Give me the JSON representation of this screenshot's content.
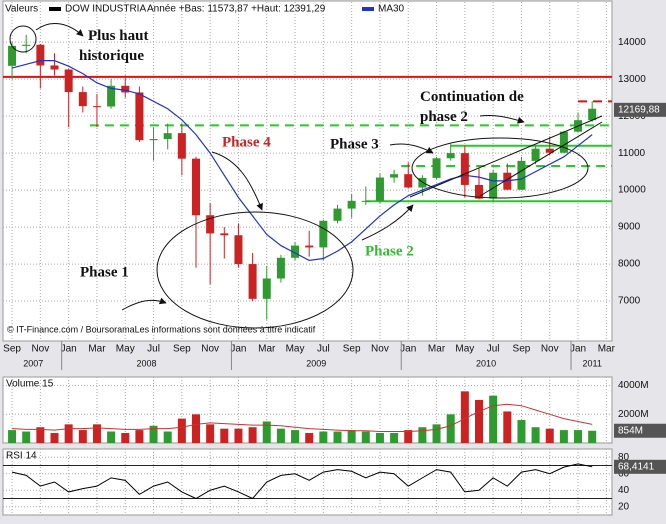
{
  "chart_data": [
    {
      "type": "candlestick",
      "header": "Valeurs",
      "title": "DOW INDUSTRIA",
      "subtitle": "Année +Bas: 11573,87 +Haut: 12391,29",
      "legend_color": "#000000",
      "copyright": "© IT-Finance.com / BoursoramaLes informations sont données à titre indicatif",
      "categories": [
        "Sep",
        null,
        "Nov",
        null,
        "Jan",
        null,
        "Mar",
        null,
        "May",
        null,
        "Jul",
        null,
        "Sep",
        null,
        "Nov",
        null,
        "Jan",
        null,
        "Mar",
        null,
        "May",
        null,
        "Jul",
        null,
        "Sep",
        null,
        "Nov",
        null,
        "Jan",
        null,
        "Mar",
        null,
        "May",
        null,
        "Jul",
        null,
        "Sep",
        null,
        "Nov",
        null,
        "Jan",
        null,
        "Mar"
      ],
      "years": [
        "2007",
        "2008",
        "2009",
        "2010",
        "2011"
      ],
      "open": [
        13360,
        13900,
        13930,
        13370,
        13260,
        12650,
        12270,
        12260,
        12820,
        12640,
        11350,
        11380,
        11540,
        10850,
        9320,
        8830,
        8780,
        8000,
        7060,
        7610,
        8170,
        8500,
        8450,
        9170,
        9500,
        9710,
        9710,
        10340,
        10430,
        10070,
        10330,
        10860,
        11000,
        10140,
        9770,
        10470,
        10010,
        10790,
        11120,
        11010,
        11580,
        11890,
        null
      ],
      "high": [
        14000,
        14200,
        13950,
        13700,
        13280,
        12800,
        12600,
        13000,
        13100,
        12800,
        11700,
        11800,
        11800,
        10900,
        9650,
        9000,
        9100,
        8300,
        7950,
        8250,
        8600,
        8900,
        9200,
        9600,
        9900,
        10100,
        10450,
        10550,
        10750,
        10400,
        10900,
        11250,
        11200,
        10600,
        10550,
        10720,
        10900,
        11200,
        11450,
        11600,
        12100,
        12400,
        null
      ],
      "low": [
        13000,
        13700,
        12750,
        13100,
        11700,
        12100,
        11700,
        12200,
        12500,
        11300,
        10800,
        11100,
        10400,
        7900,
        7450,
        8150,
        7900,
        7000,
        6500,
        7500,
        8100,
        8200,
        8100,
        9100,
        9250,
        9600,
        9650,
        10200,
        10050,
        9850,
        10300,
        10800,
        9800,
        9750,
        9680,
        10000,
        10000,
        10700,
        10950,
        11000,
        11550,
        11850,
        null
      ],
      "close": [
        13900,
        13930,
        13370,
        13260,
        12650,
        12270,
        12260,
        12820,
        12640,
        11350,
        11380,
        11540,
        10850,
        9320,
        8830,
        8780,
        8000,
        7060,
        7610,
        8170,
        8500,
        8450,
        9170,
        9500,
        9710,
        9710,
        10340,
        10430,
        10070,
        10330,
        10860,
        11000,
        10140,
        9770,
        10470,
        10010,
        10790,
        11120,
        11010,
        11580,
        11890,
        12200,
        null
      ],
      "up_color": "#2f9a2f",
      "down_color": "#cc2222",
      "series": [
        {
          "name": "MA30",
          "color": "#2233cc",
          "values": [
            13300,
            13400,
            13500,
            13500,
            13350,
            13150,
            12900,
            12750,
            12700,
            12600,
            12400,
            12200,
            11900,
            11500,
            11000,
            10400,
            9800,
            9300,
            8800,
            8500,
            8300,
            8100,
            8150,
            8350,
            8600,
            8950,
            9300,
            9600,
            9850,
            10000,
            10150,
            10300,
            10400,
            10350,
            10250,
            10250,
            10300,
            10500,
            10700,
            10900,
            11200,
            11500,
            null
          ]
        }
      ],
      "xlim": [
        -0.64,
        42.4
      ],
      "ylim": [
        5920,
        14680
      ],
      "yticks": [
        7000,
        8000,
        9000,
        10000,
        11000,
        12000,
        13000,
        14000
      ],
      "grid": true,
      "last_value": {
        "value": 12169.88,
        "label": "12169,88"
      },
      "levels": [
        {
          "value": 13060,
          "color": "#dd1111",
          "style": "solid",
          "from": -0.64,
          "to": 42.4
        },
        {
          "value": 12400,
          "color": "#dd1111",
          "style": "dashed",
          "from": 40,
          "to": 42.4
        },
        {
          "value": 11750,
          "color": "#22cc22",
          "style": "dashed",
          "from": 5.5,
          "to": 42.4
        },
        {
          "value": 11200,
          "color": "#22cc22",
          "style": "solid",
          "from": 31,
          "to": 42.4
        },
        {
          "value": 10650,
          "color": "#22cc22",
          "style": "dashed",
          "from": 27.5,
          "to": 42.4
        },
        {
          "value": 9700,
          "color": "#22cc22",
          "style": "solid",
          "from": 25,
          "to": 42.4
        }
      ],
      "annotations": {
        "record_high": [
          "Plus haut",
          "historique"
        ],
        "phase1": "Phase 1",
        "phase4": "Phase 4",
        "phase3": "Phase 3",
        "phase2": "Phase 2",
        "continuation": [
          "Continuation de",
          "phase 2"
        ]
      }
    },
    {
      "type": "bar",
      "title": "Volume 15",
      "values": [
        900,
        800,
        1100,
        700,
        1300,
        900,
        1300,
        800,
        700,
        900,
        1200,
        800,
        1700,
        2000,
        1300,
        1000,
        1000,
        1100,
        1500,
        1000,
        900,
        700,
        800,
        800,
        900,
        800,
        700,
        700,
        900,
        1100,
        1300,
        2000,
        3600,
        3000,
        3300,
        2200,
        1600,
        1100,
        1000,
        900,
        900,
        854,
        null
      ],
      "average": [
        1000,
        950,
        950,
        900,
        1000,
        1000,
        1050,
        1000,
        950,
        950,
        1000,
        1000,
        1100,
        1300,
        1400,
        1350,
        1300,
        1250,
        1250,
        1200,
        1100,
        1000,
        950,
        900,
        850,
        850,
        800,
        800,
        800,
        850,
        950,
        1200,
        1700,
        2200,
        2600,
        2700,
        2600,
        2300,
        2000,
        1700,
        1500,
        1300,
        null
      ],
      "average_color": "#cc3333",
      "ylim": [
        0,
        4600
      ],
      "yticks": [
        {
          "value": 2000,
          "label": "2000M"
        },
        {
          "value": 4000,
          "label": "4000M"
        }
      ],
      "last_value": {
        "value": 854,
        "label": "854M"
      }
    },
    {
      "type": "line",
      "title": "RSI 14",
      "color": "#000000",
      "values": [
        62,
        58,
        45,
        50,
        38,
        42,
        45,
        55,
        52,
        35,
        45,
        50,
        38,
        30,
        40,
        45,
        38,
        30,
        50,
        58,
        60,
        52,
        62,
        65,
        63,
        55,
        62,
        60,
        45,
        55,
        65,
        62,
        38,
        40,
        55,
        45,
        62,
        65,
        60,
        68,
        72,
        68.4141,
        null
      ],
      "ylim": [
        10,
        90
      ],
      "yticks": [
        20,
        40,
        60,
        80
      ],
      "levels": [
        30,
        70
      ],
      "last_value": {
        "value": 68.4141,
        "label": "68,4141"
      }
    }
  ]
}
